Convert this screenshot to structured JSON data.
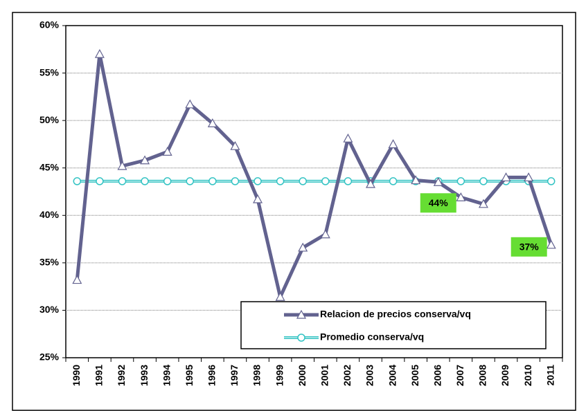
{
  "chart_data": {
    "type": "line",
    "categories": [
      "1990",
      "1991",
      "1992",
      "1993",
      "1994",
      "1995",
      "1996",
      "1997",
      "1998",
      "1999",
      "2000",
      "2001",
      "2002",
      "2003",
      "2004",
      "2005",
      "2006",
      "2007",
      "2008",
      "2009",
      "2010",
      "2011"
    ],
    "series": [
      {
        "name": "Relacion de precios conserva/vq",
        "color": "#62628f",
        "marker": "triangle",
        "values": [
          33.2,
          57.0,
          45.2,
          45.8,
          46.7,
          51.7,
          49.7,
          47.3,
          41.7,
          31.4,
          36.6,
          38.0,
          48.1,
          43.3,
          47.5,
          43.7,
          43.5,
          41.9,
          41.2,
          44.0,
          44.0,
          36.9
        ],
        "value_labels": [
          null,
          null,
          null,
          null,
          null,
          null,
          null,
          null,
          null,
          null,
          null,
          null,
          null,
          null,
          null,
          null,
          "44%",
          null,
          null,
          null,
          null,
          "37%"
        ]
      },
      {
        "name": "Promedio conserva/vq",
        "color": "#33c3c3",
        "marker": "circle",
        "values": [
          43.6,
          43.6,
          43.6,
          43.6,
          43.6,
          43.6,
          43.6,
          43.6,
          43.6,
          43.6,
          43.6,
          43.6,
          43.6,
          43.6,
          43.6,
          43.6,
          43.6,
          43.6,
          43.6,
          43.6,
          43.6,
          43.6
        ]
      }
    ],
    "ylim": [
      25,
      60
    ],
    "yticks": [
      {
        "value": 25,
        "label": "25%"
      },
      {
        "value": 30,
        "label": "30%"
      },
      {
        "value": 35,
        "label": "35%"
      },
      {
        "value": 40,
        "label": "40%"
      },
      {
        "value": 45,
        "label": "45%"
      },
      {
        "value": 50,
        "label": "50%"
      },
      {
        "value": 55,
        "label": "55%"
      },
      {
        "value": 60,
        "label": "60%"
      }
    ],
    "grid": true
  }
}
